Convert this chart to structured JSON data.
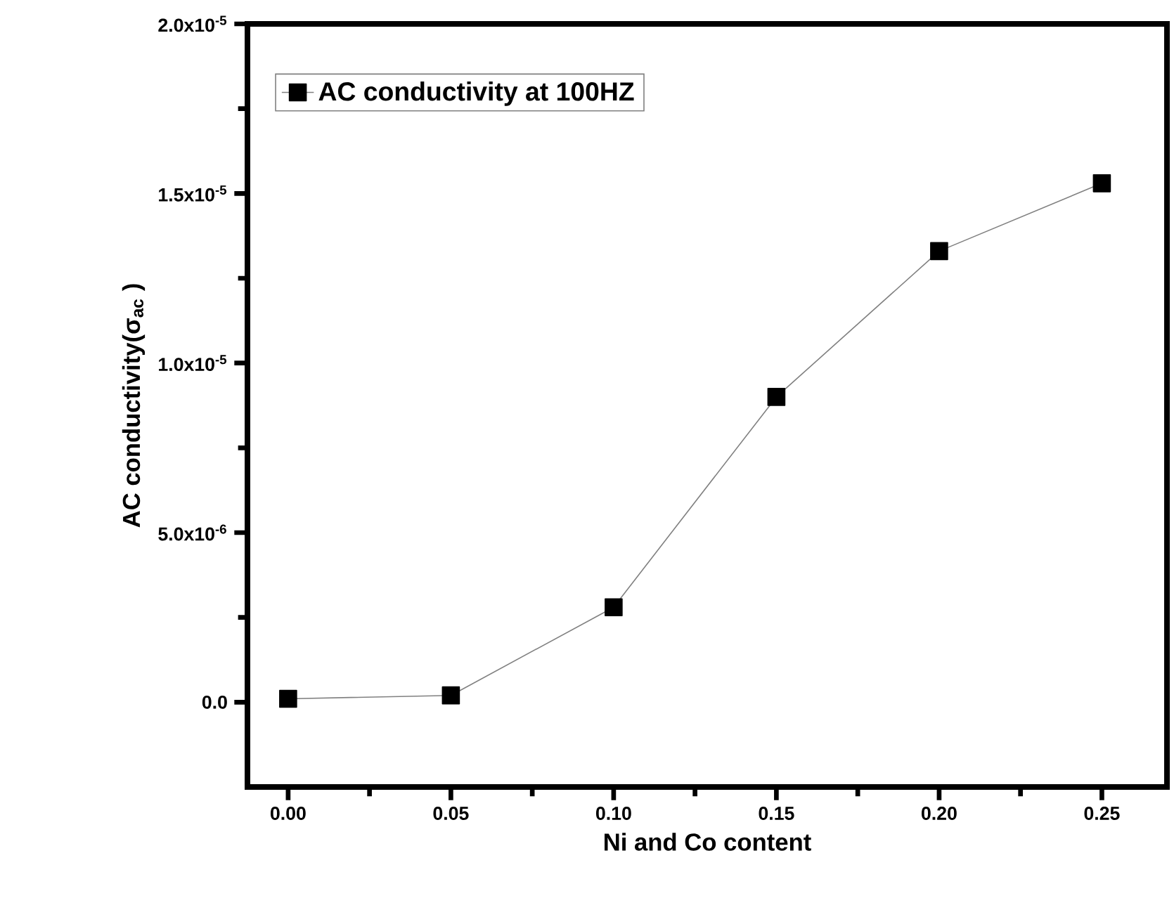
{
  "chart_data": {
    "type": "line",
    "xlabel": "Ni and Co content",
    "ylabel": "AC conductivity(σ$_{ac}$ )",
    "x": [
      0.0,
      0.05,
      0.1,
      0.15,
      0.2,
      0.25
    ],
    "series": [
      {
        "name": "AC conductivity at 100HZ",
        "color": "#000000",
        "values": [
          1e-07,
          2e-07,
          2.8e-06,
          9e-06,
          1.33e-05,
          1.53e-05
        ]
      }
    ],
    "xlim": [
      -0.0125,
      0.27
    ],
    "ylim": [
      -2.5e-06,
      2e-05
    ],
    "xticks": [
      {
        "value": 0,
        "label": "0.00"
      },
      {
        "value": 0.05,
        "label": "0.05"
      },
      {
        "value": 0.1,
        "label": "0.10"
      },
      {
        "value": 0.15,
        "label": "0.15"
      },
      {
        "value": 0.2,
        "label": "0.20"
      },
      {
        "value": 0.25,
        "label": "0.25"
      }
    ],
    "yticks": [
      {
        "value": 0,
        "label": "0.0"
      },
      {
        "value": 5e-06,
        "label": "5.0x10$^{-6}$"
      },
      {
        "value": 1e-05,
        "label": "1.0x10$^{-5}$"
      },
      {
        "value": 1.5e-05,
        "label": "1.5x10$^{-5}$"
      },
      {
        "value": 2e-05,
        "label": "2.0x10$^{-5}$"
      }
    ],
    "marker": "square",
    "line_style": "solid",
    "legend": "top left",
    "grid": false
  }
}
